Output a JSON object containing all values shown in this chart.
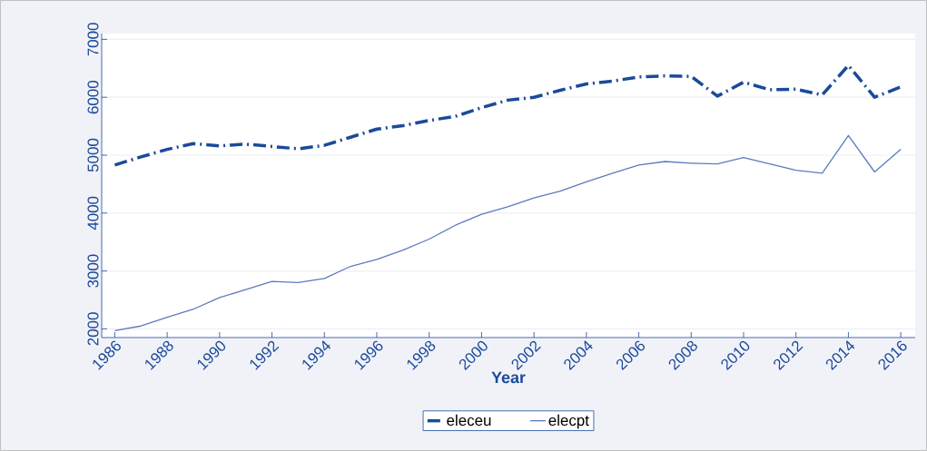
{
  "chart_data": {
    "type": "line",
    "xlabel": "Year",
    "x": [
      1986,
      1987,
      1988,
      1989,
      1990,
      1991,
      1992,
      1993,
      1994,
      1995,
      1996,
      1997,
      1998,
      1999,
      2000,
      2001,
      2002,
      2003,
      2004,
      2005,
      2006,
      2007,
      2008,
      2009,
      2010,
      2011,
      2012,
      2013,
      2014,
      2015,
      2016
    ],
    "series": [
      {
        "name": "eleceu",
        "color": "#1a4a9a",
        "line_style": "dashed",
        "values": [
          4830,
          4970,
          5100,
          5200,
          5160,
          5190,
          5150,
          5110,
          5170,
          5310,
          5450,
          5510,
          5600,
          5670,
          5820,
          5950,
          6000,
          6120,
          6230,
          6280,
          6350,
          6370,
          6360,
          6020,
          6260,
          6130,
          6140,
          6040,
          6550,
          6000,
          6180
        ]
      },
      {
        "name": "elecpt",
        "color": "#5b7bbf",
        "line_style": "solid",
        "values": [
          1970,
          2050,
          2200,
          2340,
          2540,
          2680,
          2820,
          2800,
          2870,
          3080,
          3200,
          3360,
          3550,
          3790,
          3980,
          4110,
          4260,
          4380,
          4540,
          4690,
          4830,
          4890,
          4860,
          4850,
          4960,
          4850,
          4740,
          4690,
          5340,
          4710,
          5100
        ]
      }
    ],
    "xlim": [
      1985.5,
      2016.55
    ],
    "ylim": [
      1850,
      7100
    ],
    "xticks": [
      1986,
      1988,
      1990,
      1992,
      1994,
      1996,
      1998,
      2000,
      2002,
      2004,
      2006,
      2008,
      2010,
      2012,
      2014,
      2016
    ],
    "yticks": [
      2000,
      3000,
      4000,
      5000,
      6000,
      7000
    ],
    "grid": "y",
    "legend": "bottom",
    "marker": "none"
  }
}
